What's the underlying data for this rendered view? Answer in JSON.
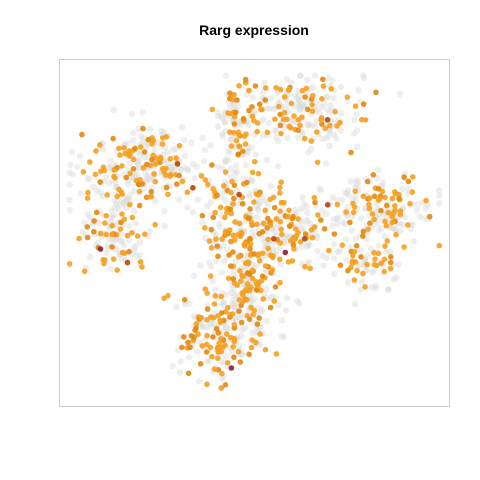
{
  "chart_data": {
    "type": "scatter",
    "title": "Rarg expression",
    "xlabel": "",
    "ylabel": "",
    "axes_visible": false,
    "grid": false,
    "legend": "none",
    "frame": true,
    "colors": {
      "background_cells": "#d9d9d9",
      "low_expression": "#f5a020",
      "mid_expression": "#e08a10",
      "high_expression": "#b5501a",
      "max_expression": "#8b2a4a",
      "frame": "#cccccc"
    },
    "clusters": [
      {
        "name": "top-right",
        "cx": 0.62,
        "cy": 0.86,
        "sx": 0.08,
        "sy": 0.06,
        "n_gray": 150,
        "n_expr": 70
      },
      {
        "name": "top-middle",
        "cx": 0.45,
        "cy": 0.81,
        "sx": 0.03,
        "sy": 0.08,
        "n_gray": 60,
        "n_expr": 30
      },
      {
        "name": "upper-left-arm",
        "cx": 0.22,
        "cy": 0.69,
        "sx": 0.08,
        "sy": 0.06,
        "n_gray": 170,
        "n_expr": 90
      },
      {
        "name": "left-lower",
        "cx": 0.14,
        "cy": 0.5,
        "sx": 0.05,
        "sy": 0.06,
        "n_gray": 80,
        "n_expr": 40
      },
      {
        "name": "center",
        "cx": 0.47,
        "cy": 0.52,
        "sx": 0.07,
        "sy": 0.1,
        "n_gray": 150,
        "n_expr": 120
      },
      {
        "name": "center-right",
        "cx": 0.6,
        "cy": 0.5,
        "sx": 0.05,
        "sy": 0.05,
        "n_gray": 70,
        "n_expr": 40
      },
      {
        "name": "right",
        "cx": 0.83,
        "cy": 0.57,
        "sx": 0.07,
        "sy": 0.05,
        "n_gray": 120,
        "n_expr": 60
      },
      {
        "name": "right-lower",
        "cx": 0.8,
        "cy": 0.4,
        "sx": 0.04,
        "sy": 0.04,
        "n_gray": 40,
        "n_expr": 30
      },
      {
        "name": "bottom",
        "cx": 0.42,
        "cy": 0.2,
        "sx": 0.06,
        "sy": 0.07,
        "n_gray": 120,
        "n_expr": 90
      },
      {
        "name": "bottom-center",
        "cx": 0.5,
        "cy": 0.33,
        "sx": 0.04,
        "sy": 0.06,
        "n_gray": 60,
        "n_expr": 40
      }
    ],
    "highlight_points": [
      {
        "x": 0.1,
        "y": 0.45,
        "level": "max"
      },
      {
        "x": 0.34,
        "y": 0.63,
        "level": "high"
      },
      {
        "x": 0.55,
        "y": 0.48,
        "level": "high"
      },
      {
        "x": 0.58,
        "y": 0.44,
        "level": "max"
      },
      {
        "x": 0.69,
        "y": 0.58,
        "level": "high"
      },
      {
        "x": 0.44,
        "y": 0.1,
        "level": "max"
      },
      {
        "x": 0.69,
        "y": 0.83,
        "level": "high"
      },
      {
        "x": 0.17,
        "y": 0.41,
        "level": "high"
      },
      {
        "x": 0.3,
        "y": 0.7,
        "level": "high"
      },
      {
        "x": 0.63,
        "y": 0.48,
        "level": "high"
      },
      {
        "x": 0.46,
        "y": 0.61,
        "level": "high"
      }
    ]
  }
}
